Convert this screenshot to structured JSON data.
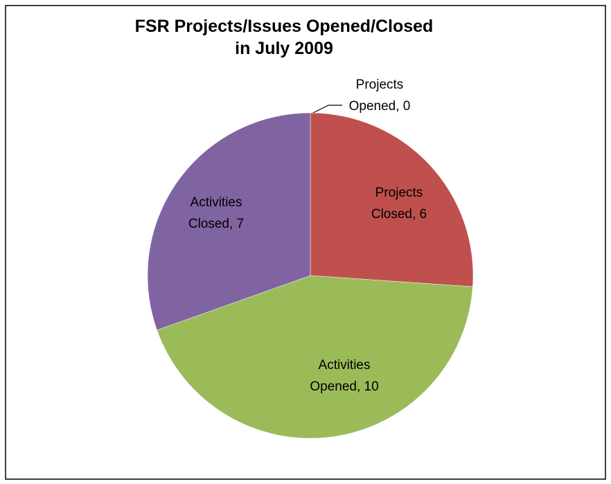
{
  "chart_data": {
    "type": "pie",
    "title": "FSR Projects/Issues Opened/Closed\nin July 2009",
    "values": [
      0,
      6,
      10,
      7
    ],
    "value_labels": [
      "Projects Opened, 0",
      "Projects Closed, 6",
      "Activities Opened, 10",
      "Activities Closed, 7"
    ],
    "colors": [
      "#4f81bd",
      "#c0504d",
      "#9bbb59",
      "#8064a2"
    ]
  }
}
